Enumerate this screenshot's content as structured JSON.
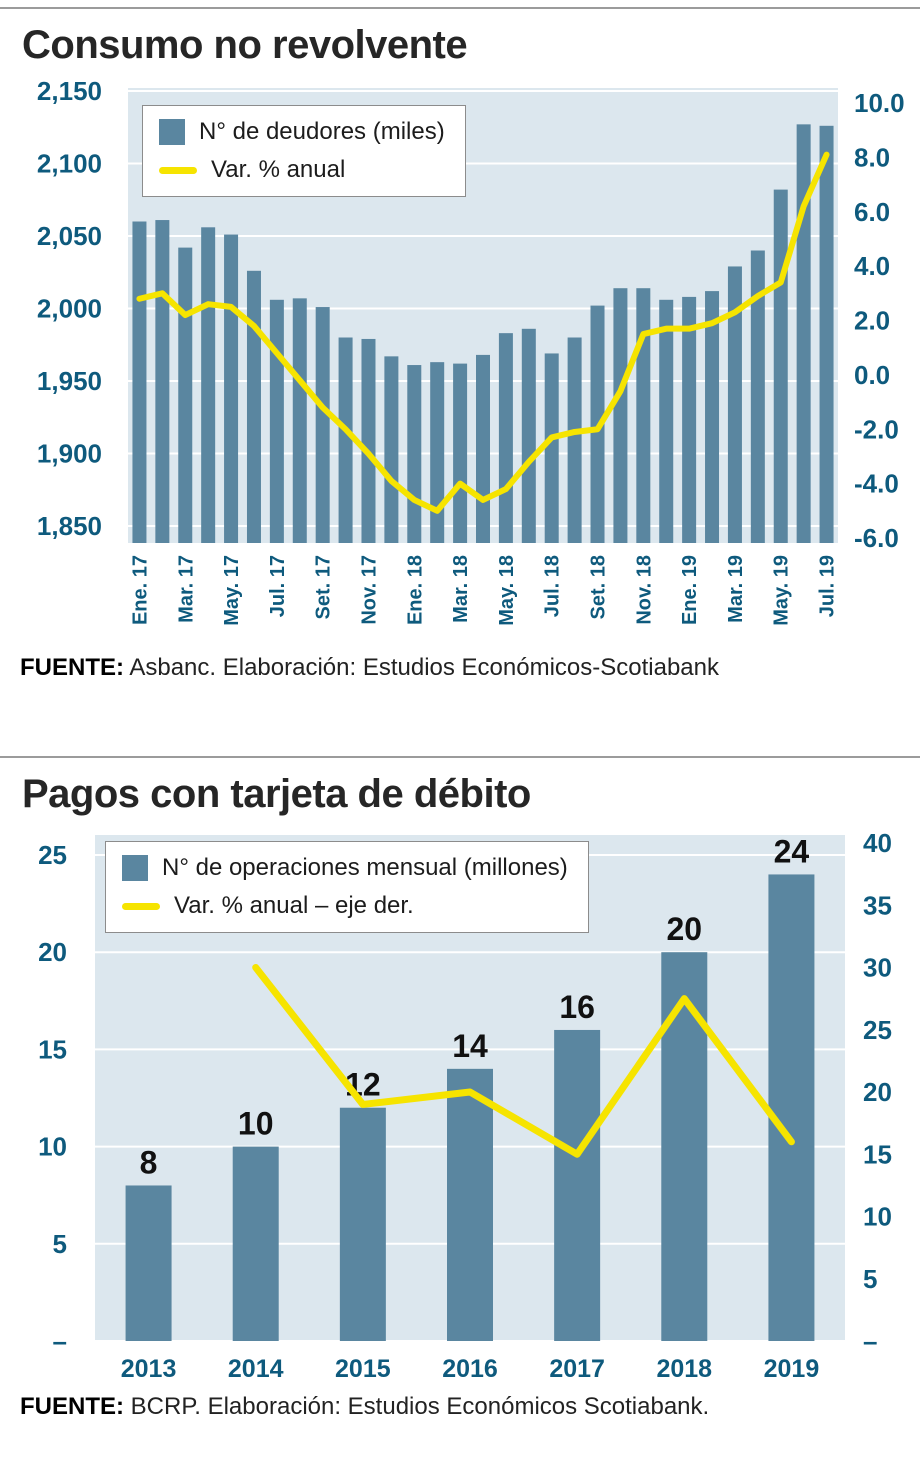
{
  "colors": {
    "bar": "#5a86a0",
    "line": "#f6e400",
    "plot_bg": "#dce7ee",
    "grid": "#ffffff",
    "axis_text": "#0e5a7d",
    "title_text": "#262626",
    "rule": "#9b9b9b"
  },
  "panels": [
    {
      "title": "Consumo no revolvente",
      "legend_bar": "N° de deudores (miles)",
      "legend_line": "Var. % anual",
      "source_label": "FUENTE:",
      "source_text": " Asbanc. Elaboración: Estudios Económicos-Scotiabank"
    },
    {
      "title": "Pagos con tarjeta de débito",
      "legend_bar": "N° de operaciones mensual (millones)",
      "legend_line": "Var. % anual – eje der.",
      "source_label": "FUENTE:",
      "source_text": " BCRP. Elaboración: Estudios Económicos Scotiabank."
    }
  ],
  "chart_data": [
    {
      "type": "bar+line",
      "title": "Consumo no revolvente",
      "x": [
        "Ene. 17",
        "Feb. 17",
        "Mar. 17",
        "Abr. 17",
        "May. 17",
        "Jun. 17",
        "Jul. 17",
        "Ago. 17",
        "Set. 17",
        "Oct. 17",
        "Nov. 17",
        "Dic. 17",
        "Ene. 18",
        "Feb. 18",
        "Mar. 18",
        "Abr. 18",
        "May. 18",
        "Jun. 18",
        "Jul. 18",
        "Ago. 18",
        "Set. 18",
        "Oct. 18",
        "Nov. 18",
        "Dic. 18",
        "Ene. 19",
        "Feb. 19",
        "Mar. 19",
        "Abr. 19",
        "May. 19",
        "Jun. 19",
        "Jul. 19"
      ],
      "x_ticks_shown_every": 2,
      "series": [
        {
          "name": "N° de deudores (miles)",
          "type": "bar",
          "axis": "left",
          "values": [
            2060,
            2061,
            2042,
            2056,
            2051,
            2026,
            2006,
            2007,
            2001,
            1980,
            1979,
            1967,
            1961,
            1963,
            1962,
            1968,
            1983,
            1986,
            1969,
            1980,
            2002,
            2014,
            2014,
            2006,
            2008,
            2012,
            2029,
            2040,
            2082,
            2127,
            2126
          ]
        },
        {
          "name": "Var. % anual",
          "type": "line",
          "axis": "right",
          "values": [
            2.8,
            3.0,
            2.2,
            2.6,
            2.5,
            1.8,
            0.8,
            -0.2,
            -1.2,
            -2.0,
            -2.9,
            -3.9,
            -4.6,
            -5.0,
            -4.0,
            -4.6,
            -4.2,
            -3.2,
            -2.3,
            -2.1,
            -2.0,
            -0.6,
            1.5,
            1.7,
            1.7,
            1.9,
            2.3,
            2.9,
            3.4,
            6.2,
            8.1
          ]
        }
      ],
      "left_axis": {
        "min": 1850,
        "max": 2150,
        "ticks": [
          {
            "v": 2150,
            "label": "2,150"
          },
          {
            "v": 2100,
            "label": "2,100"
          },
          {
            "v": 2050,
            "label": "2,050"
          },
          {
            "v": 2000,
            "label": "2,000"
          },
          {
            "v": 1950,
            "label": "1,950"
          },
          {
            "v": 1900,
            "label": "1,900"
          },
          {
            "v": 1850,
            "label": "1,850"
          }
        ]
      },
      "right_axis": {
        "min": -6,
        "max": 10,
        "ticks": [
          {
            "v": 10,
            "label": "10.0"
          },
          {
            "v": 8,
            "label": "8.0"
          },
          {
            "v": 6,
            "label": "6.0"
          },
          {
            "v": 4,
            "label": "4.0"
          },
          {
            "v": 2,
            "label": "2.0"
          },
          {
            "v": 0,
            "label": "0.0"
          },
          {
            "v": -2,
            "label": "-2.0"
          },
          {
            "v": -4,
            "label": "-4.0"
          },
          {
            "v": -6,
            "label": "-6.0"
          }
        ]
      },
      "grid": true,
      "legend_position": "top-left"
    },
    {
      "type": "bar+line",
      "title": "Pagos con tarjeta de débito",
      "x": [
        "2013",
        "2014",
        "2015",
        "2016",
        "2017",
        "2018",
        "2019"
      ],
      "series": [
        {
          "name": "N° de operaciones mensual (millones)",
          "type": "bar",
          "axis": "left",
          "values": [
            8,
            10,
            12,
            14,
            16,
            20,
            24
          ],
          "labels": [
            "8",
            "10",
            "12",
            "14",
            "16",
            "20",
            "24"
          ]
        },
        {
          "name": "Var. % anual – eje der.",
          "type": "line",
          "axis": "right",
          "values": [
            null,
            30,
            19,
            20,
            15,
            27.5,
            16
          ]
        }
      ],
      "left_axis": {
        "min": 0,
        "max": 25,
        "ticks": [
          {
            "v": 25,
            "label": "25"
          },
          {
            "v": 20,
            "label": "20"
          },
          {
            "v": 15,
            "label": "15"
          },
          {
            "v": 10,
            "label": "10"
          },
          {
            "v": 5,
            "label": "5"
          },
          {
            "v": 0,
            "label": "–"
          }
        ]
      },
      "right_axis": {
        "min": 0,
        "max": 40,
        "ticks": [
          {
            "v": 40,
            "label": "40"
          },
          {
            "v": 35,
            "label": "35"
          },
          {
            "v": 30,
            "label": "30"
          },
          {
            "v": 25,
            "label": "25"
          },
          {
            "v": 20,
            "label": "20"
          },
          {
            "v": 15,
            "label": "15"
          },
          {
            "v": 10,
            "label": "10"
          },
          {
            "v": 5,
            "label": "5"
          },
          {
            "v": 0,
            "label": "–"
          }
        ]
      },
      "grid": true,
      "legend_position": "top-left"
    }
  ]
}
